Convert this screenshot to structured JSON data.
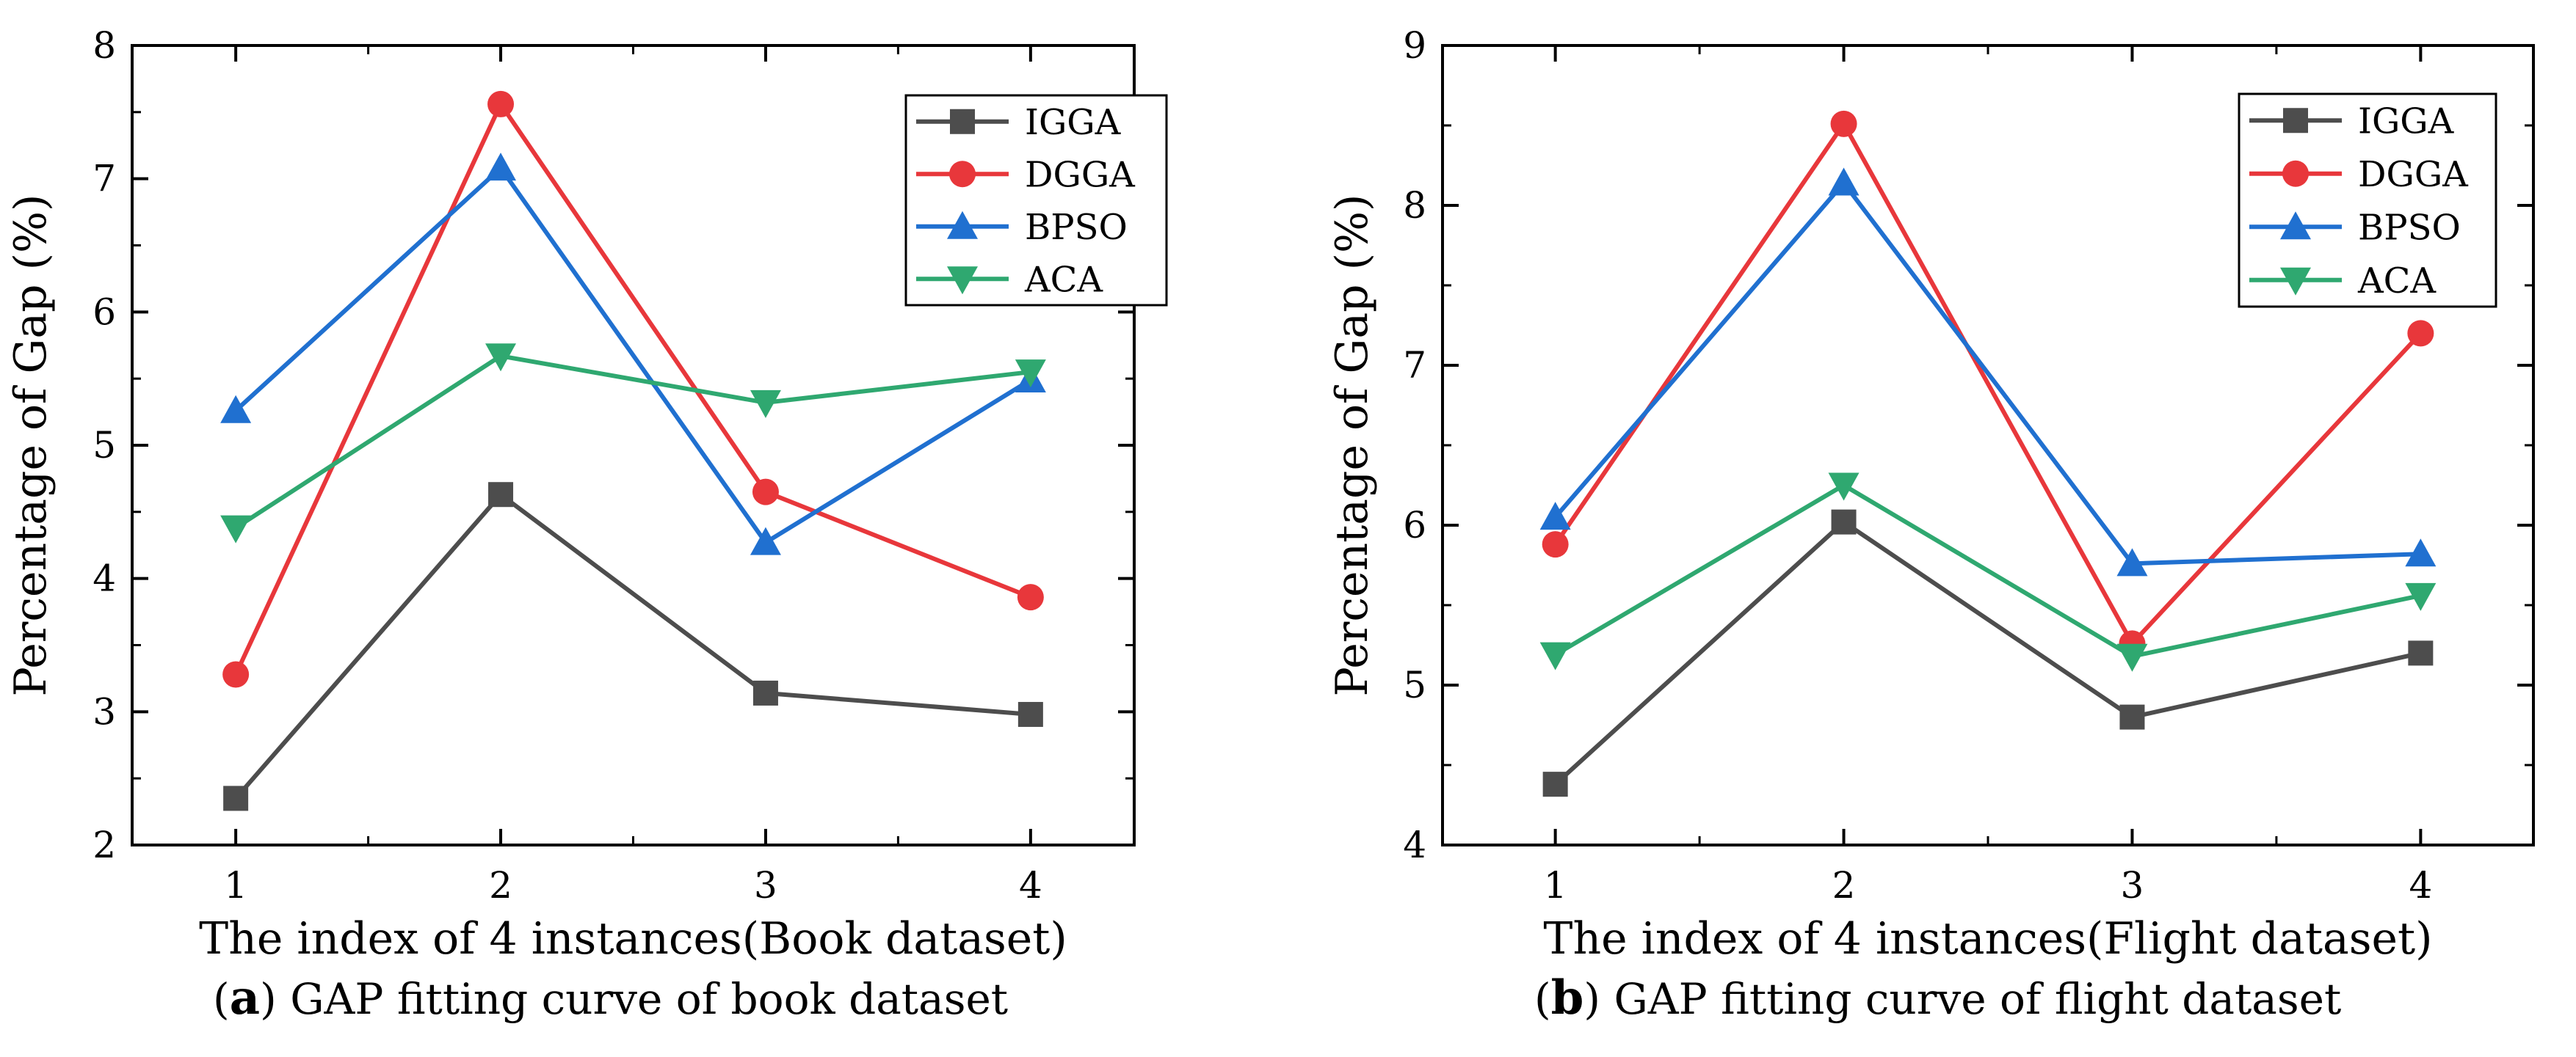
{
  "chart_data": [
    {
      "type": "line",
      "panel_letter": "a",
      "caption": "GAP fitting curve of book dataset",
      "xlabel": "The index of 4 instances(Book dataset)",
      "ylabel": "Percentage of Gap (%)",
      "categories": [
        1,
        2,
        3,
        4
      ],
      "ylim": [
        2,
        8
      ],
      "yticks": [
        2,
        3,
        4,
        5,
        6,
        7,
        8
      ],
      "legend_position": "top-right",
      "series": [
        {
          "name": "IGGA",
          "color": "#4d4d4d",
          "marker": "square",
          "values": [
            2.35,
            4.63,
            3.14,
            2.98
          ]
        },
        {
          "name": "DGGA",
          "color": "#e8373b",
          "marker": "circle",
          "values": [
            3.28,
            7.56,
            4.65,
            3.86
          ]
        },
        {
          "name": "BPSO",
          "color": "#2070d0",
          "marker": "triangle-up",
          "values": [
            5.26,
            7.08,
            4.27,
            5.49
          ]
        },
        {
          "name": "ACA",
          "color": "#2fa870",
          "marker": "triangle-down",
          "values": [
            4.38,
            5.67,
            5.32,
            5.55
          ]
        }
      ]
    },
    {
      "type": "line",
      "panel_letter": "b",
      "caption": "GAP fitting curve of flight dataset",
      "xlabel": "The index of 4 instances(Flight dataset)",
      "ylabel": "Percentage of Gap (%)",
      "categories": [
        1,
        2,
        3,
        4
      ],
      "ylim": [
        4,
        9
      ],
      "yticks": [
        4,
        5,
        6,
        7,
        8,
        9
      ],
      "legend_position": "top-right",
      "series": [
        {
          "name": "IGGA",
          "color": "#4d4d4d",
          "marker": "square",
          "values": [
            4.38,
            6.02,
            4.8,
            5.2
          ]
        },
        {
          "name": "DGGA",
          "color": "#e8373b",
          "marker": "circle",
          "values": [
            5.88,
            8.51,
            5.26,
            7.2
          ]
        },
        {
          "name": "BPSO",
          "color": "#2070d0",
          "marker": "triangle-up",
          "values": [
            6.05,
            8.14,
            5.76,
            5.82
          ]
        },
        {
          "name": "ACA",
          "color": "#2fa870",
          "marker": "triangle-down",
          "values": [
            5.19,
            6.25,
            5.18,
            5.56
          ]
        }
      ]
    }
  ]
}
